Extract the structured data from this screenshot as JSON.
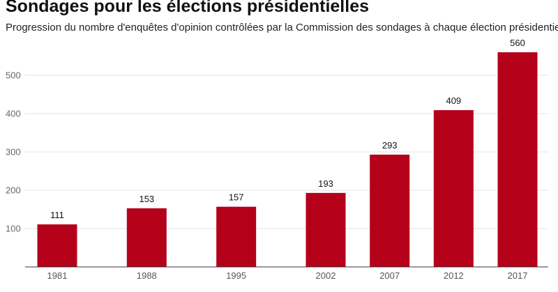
{
  "header": {
    "title": "Sondages pour les élections présidentielles",
    "subtitle": "Progression du nombre d'enquêtes d'opinion contrôlées par la Commission des sondages à chaque élection présidentielle."
  },
  "colors": {
    "bar": "#b5001a",
    "grid": "#e3e3e3",
    "axis": "#333333"
  },
  "chart_data": {
    "type": "bar",
    "title": "Sondages pour les élections présidentielles",
    "subtitle": "Progression du nombre d'enquêtes d'opinion contrôlées par la Commission des sondages à chaque élection présidentielle.",
    "xlabel": "",
    "ylabel": "",
    "categories": [
      "1981",
      "1988",
      "1995",
      "2002",
      "2007",
      "2012",
      "2017"
    ],
    "values": [
      111,
      153,
      157,
      193,
      293,
      409,
      560
    ],
    "data_labels": [
      "111",
      "153",
      "157",
      "193",
      "293",
      "409",
      "560"
    ],
    "ylim": [
      0,
      560
    ],
    "yticks": [
      100,
      200,
      300,
      400,
      500
    ],
    "grid": true,
    "x_scale": "time"
  }
}
